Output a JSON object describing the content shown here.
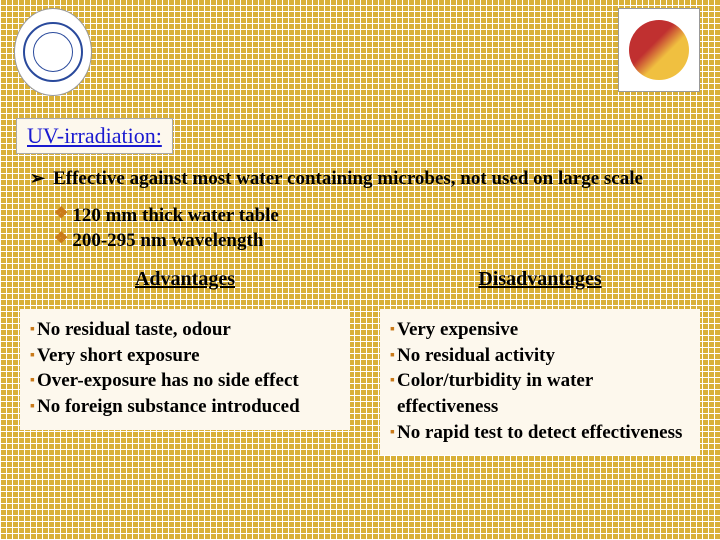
{
  "colors": {
    "background_base": "#d9b038",
    "grid_line": "#ffffff",
    "box_bg": "#fdf8ed",
    "title_text": "#1a1ad0",
    "body_text": "#000000",
    "diamond_bullet": "#c97a1a",
    "square_bullet": "#c97a1a"
  },
  "typography": {
    "title_fontsize": 22,
    "body_fontsize": 19,
    "header_fontsize": 20,
    "font_family": "Times New Roman"
  },
  "title": "UV-irradiation:",
  "main_point": "Effective against most water containing microbes, not used on large scale",
  "sub_points": [
    "120 mm thick water table",
    "200-295 nm wavelength"
  ],
  "advantages": {
    "header": "Advantages",
    "items": [
      "No residual taste, odour",
      "Very short exposure",
      "Over-exposure has no side effect",
      "No foreign substance introduced"
    ]
  },
  "disadvantages": {
    "header": "Disadvantages",
    "items": [
      "Very expensive",
      "No residual activity",
      "Color/turbidity in water effectiveness",
      "No rapid test to detect effectiveness"
    ]
  }
}
